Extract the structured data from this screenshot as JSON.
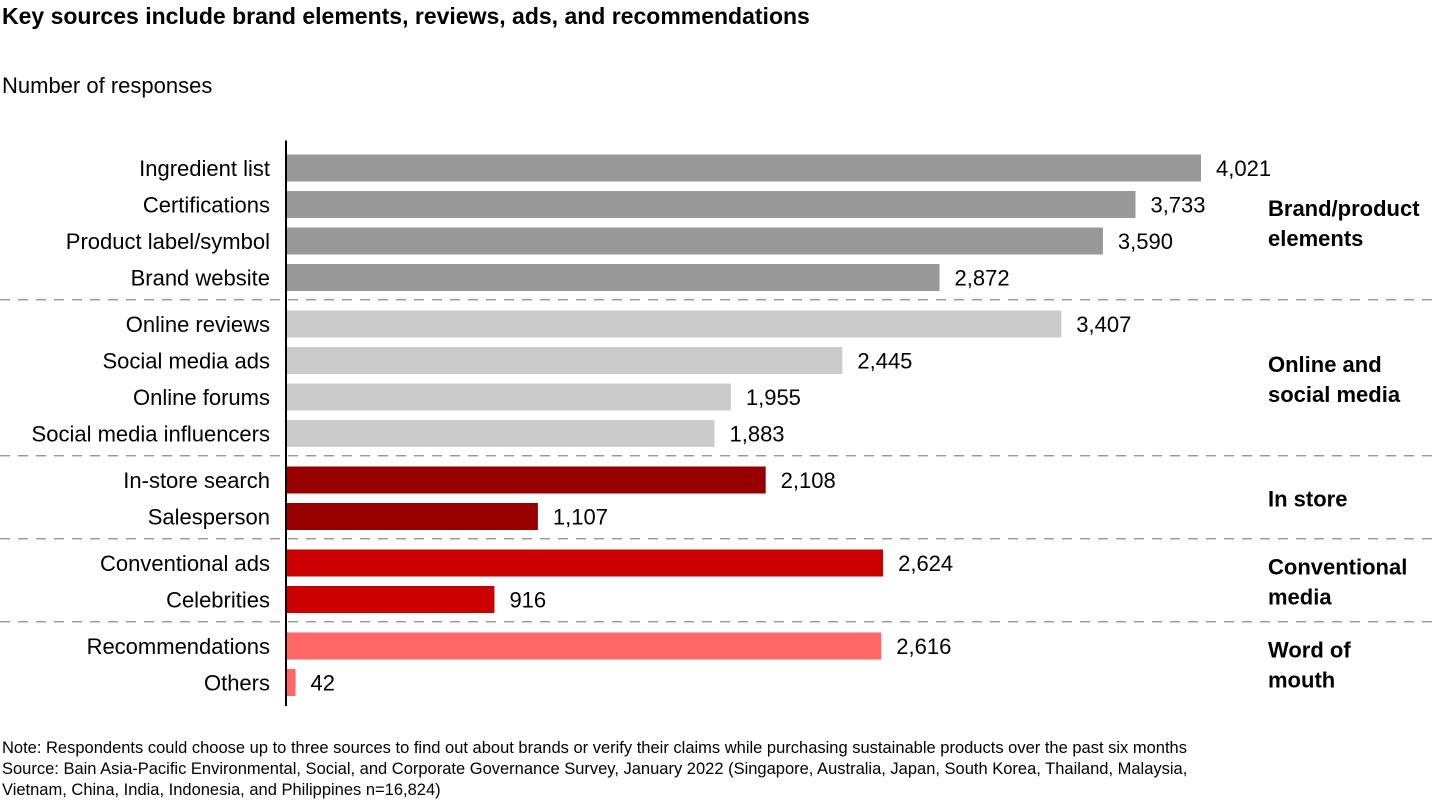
{
  "chart_data": {
    "type": "bar",
    "orientation": "horizontal",
    "title": "Key sources include brand elements, reviews, ads, and recommendations",
    "subtitle": "Number of responses",
    "xlim": [
      0,
      4021
    ],
    "grid": false,
    "data_labels": true,
    "groups": [
      {
        "label_lines": [
          "Brand/product",
          "elements"
        ],
        "color": "#989898",
        "items": [
          {
            "category": "Ingredient list",
            "value": 4021,
            "label": "4,021"
          },
          {
            "category": "Certifications",
            "value": 3733,
            "label": "3,733"
          },
          {
            "category": "Product label/symbol",
            "value": 3590,
            "label": "3,590"
          },
          {
            "category": "Brand website",
            "value": 2872,
            "label": "2,872"
          }
        ]
      },
      {
        "label_lines": [
          "Online and",
          "social media"
        ],
        "color": "#cbcbcb",
        "items": [
          {
            "category": "Online reviews",
            "value": 3407,
            "label": "3,407"
          },
          {
            "category": "Social media ads",
            "value": 2445,
            "label": "2,445"
          },
          {
            "category": "Online forums",
            "value": 1955,
            "label": "1,955"
          },
          {
            "category": "Social media influencers",
            "value": 1883,
            "label": "1,883"
          }
        ]
      },
      {
        "label_lines": [
          "In store"
        ],
        "color": "#980000",
        "items": [
          {
            "category": "In-store search",
            "value": 2108,
            "label": "2,108"
          },
          {
            "category": "Salesperson",
            "value": 1107,
            "label": "1,107"
          }
        ]
      },
      {
        "label_lines": [
          "Conventional",
          "media"
        ],
        "color": "#cc0000",
        "items": [
          {
            "category": "Conventional ads",
            "value": 2624,
            "label": "2,624"
          },
          {
            "category": "Celebrities",
            "value": 916,
            "label": "916"
          }
        ]
      },
      {
        "label_lines": [
          "Word of",
          "mouth"
        ],
        "color": "#ff6666",
        "items": [
          {
            "category": "Recommendations",
            "value": 2616,
            "label": "2,616"
          },
          {
            "category": "Others",
            "value": 42,
            "label": "42"
          }
        ]
      }
    ]
  },
  "notes": {
    "line1": "Note: Respondents could choose up to three sources to find out about brands or verify their claims while purchasing sustainable products over the past six months",
    "line2": "Source: Bain Asia-Pacific Environmental, Social, and Corporate Governance Survey, January 2022 (Singapore, Australia, Japan, South Korea, Thailand, Malaysia,",
    "line3": "Vietnam, China, India, Indonesia, and Philippines n=16,824)"
  }
}
